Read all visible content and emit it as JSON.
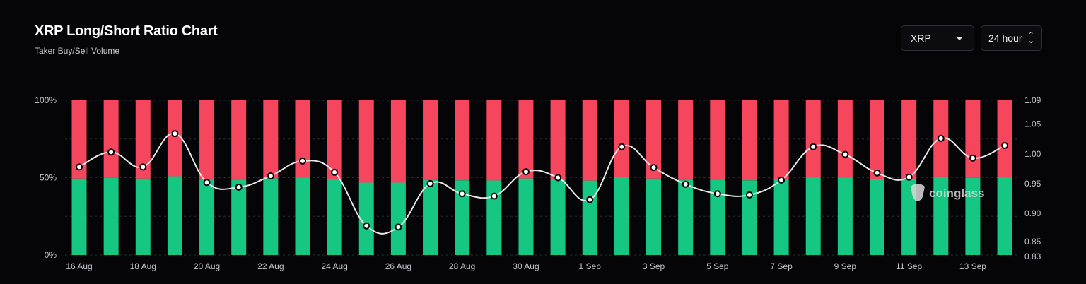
{
  "header": {
    "title": "XRP Long/Short Ratio Chart",
    "subtitle": "Taker Buy/Sell Volume"
  },
  "controls": {
    "asset_value": "XRP",
    "range_value": "24 hour"
  },
  "watermark": "coinglass",
  "colors": {
    "long": "#16c784",
    "short": "#f6465d",
    "ratio_line": "#e8e8e8",
    "background": "#050508"
  },
  "icons": [
    "chevron-down-icon",
    "sort-updown-icon",
    "coinglass-logo-icon"
  ],
  "chart_data": {
    "type": "bar",
    "stacked": true,
    "x_tick_labels": [
      "16 Aug",
      "18 Aug",
      "20 Aug",
      "22 Aug",
      "24 Aug",
      "26 Aug",
      "28 Aug",
      "30 Aug",
      "1 Sep",
      "3 Sep",
      "5 Sep",
      "7 Sep",
      "9 Sep",
      "11 Sep",
      "13 Sep"
    ],
    "y_left_ticks": [
      "0%",
      "50%",
      "100%"
    ],
    "y_left_range": [
      0,
      100
    ],
    "y_right_ticks": [
      "0.83",
      "0.85",
      "0.90",
      "0.95",
      "1.00",
      "1.05",
      "1.09"
    ],
    "y_right_range": [
      0.83,
      1.09
    ],
    "series": [
      {
        "values": [
          49.4,
          50.1,
          49.4,
          50.9,
          48.8,
          48.6,
          49.6,
          50.0,
          49.2,
          46.8,
          46.8,
          48.7,
          48.3,
          48.2,
          49.5,
          49.0,
          48.1,
          50.3,
          49.4,
          48.7,
          48.4,
          48.3,
          48.9,
          50.3,
          50.0,
          49.2,
          49.0,
          50.7,
          49.8,
          50.4
        ]
      },
      {
        "values": [
          50.6,
          49.9,
          50.6,
          49.1,
          51.2,
          51.4,
          50.4,
          50.0,
          50.8,
          53.2,
          53.2,
          51.3,
          51.7,
          51.8,
          50.5,
          51.0,
          51.9,
          49.7,
          50.6,
          51.3,
          51.6,
          51.7,
          51.1,
          49.7,
          50.0,
          50.8,
          51.0,
          49.3,
          50.2,
          49.6
        ]
      },
      {
        "axis": "right",
        "type": "line",
        "values": [
          0.978,
          1.003,
          0.978,
          1.034,
          0.952,
          0.944,
          0.963,
          0.988,
          0.969,
          0.879,
          0.877,
          0.95,
          0.933,
          0.929,
          0.97,
          0.96,
          0.923,
          1.012,
          0.977,
          0.949,
          0.933,
          0.931,
          0.956,
          1.012,
          0.999,
          0.968,
          0.961,
          1.026,
          0.993,
          1.014
        ]
      }
    ],
    "grid": true
  }
}
